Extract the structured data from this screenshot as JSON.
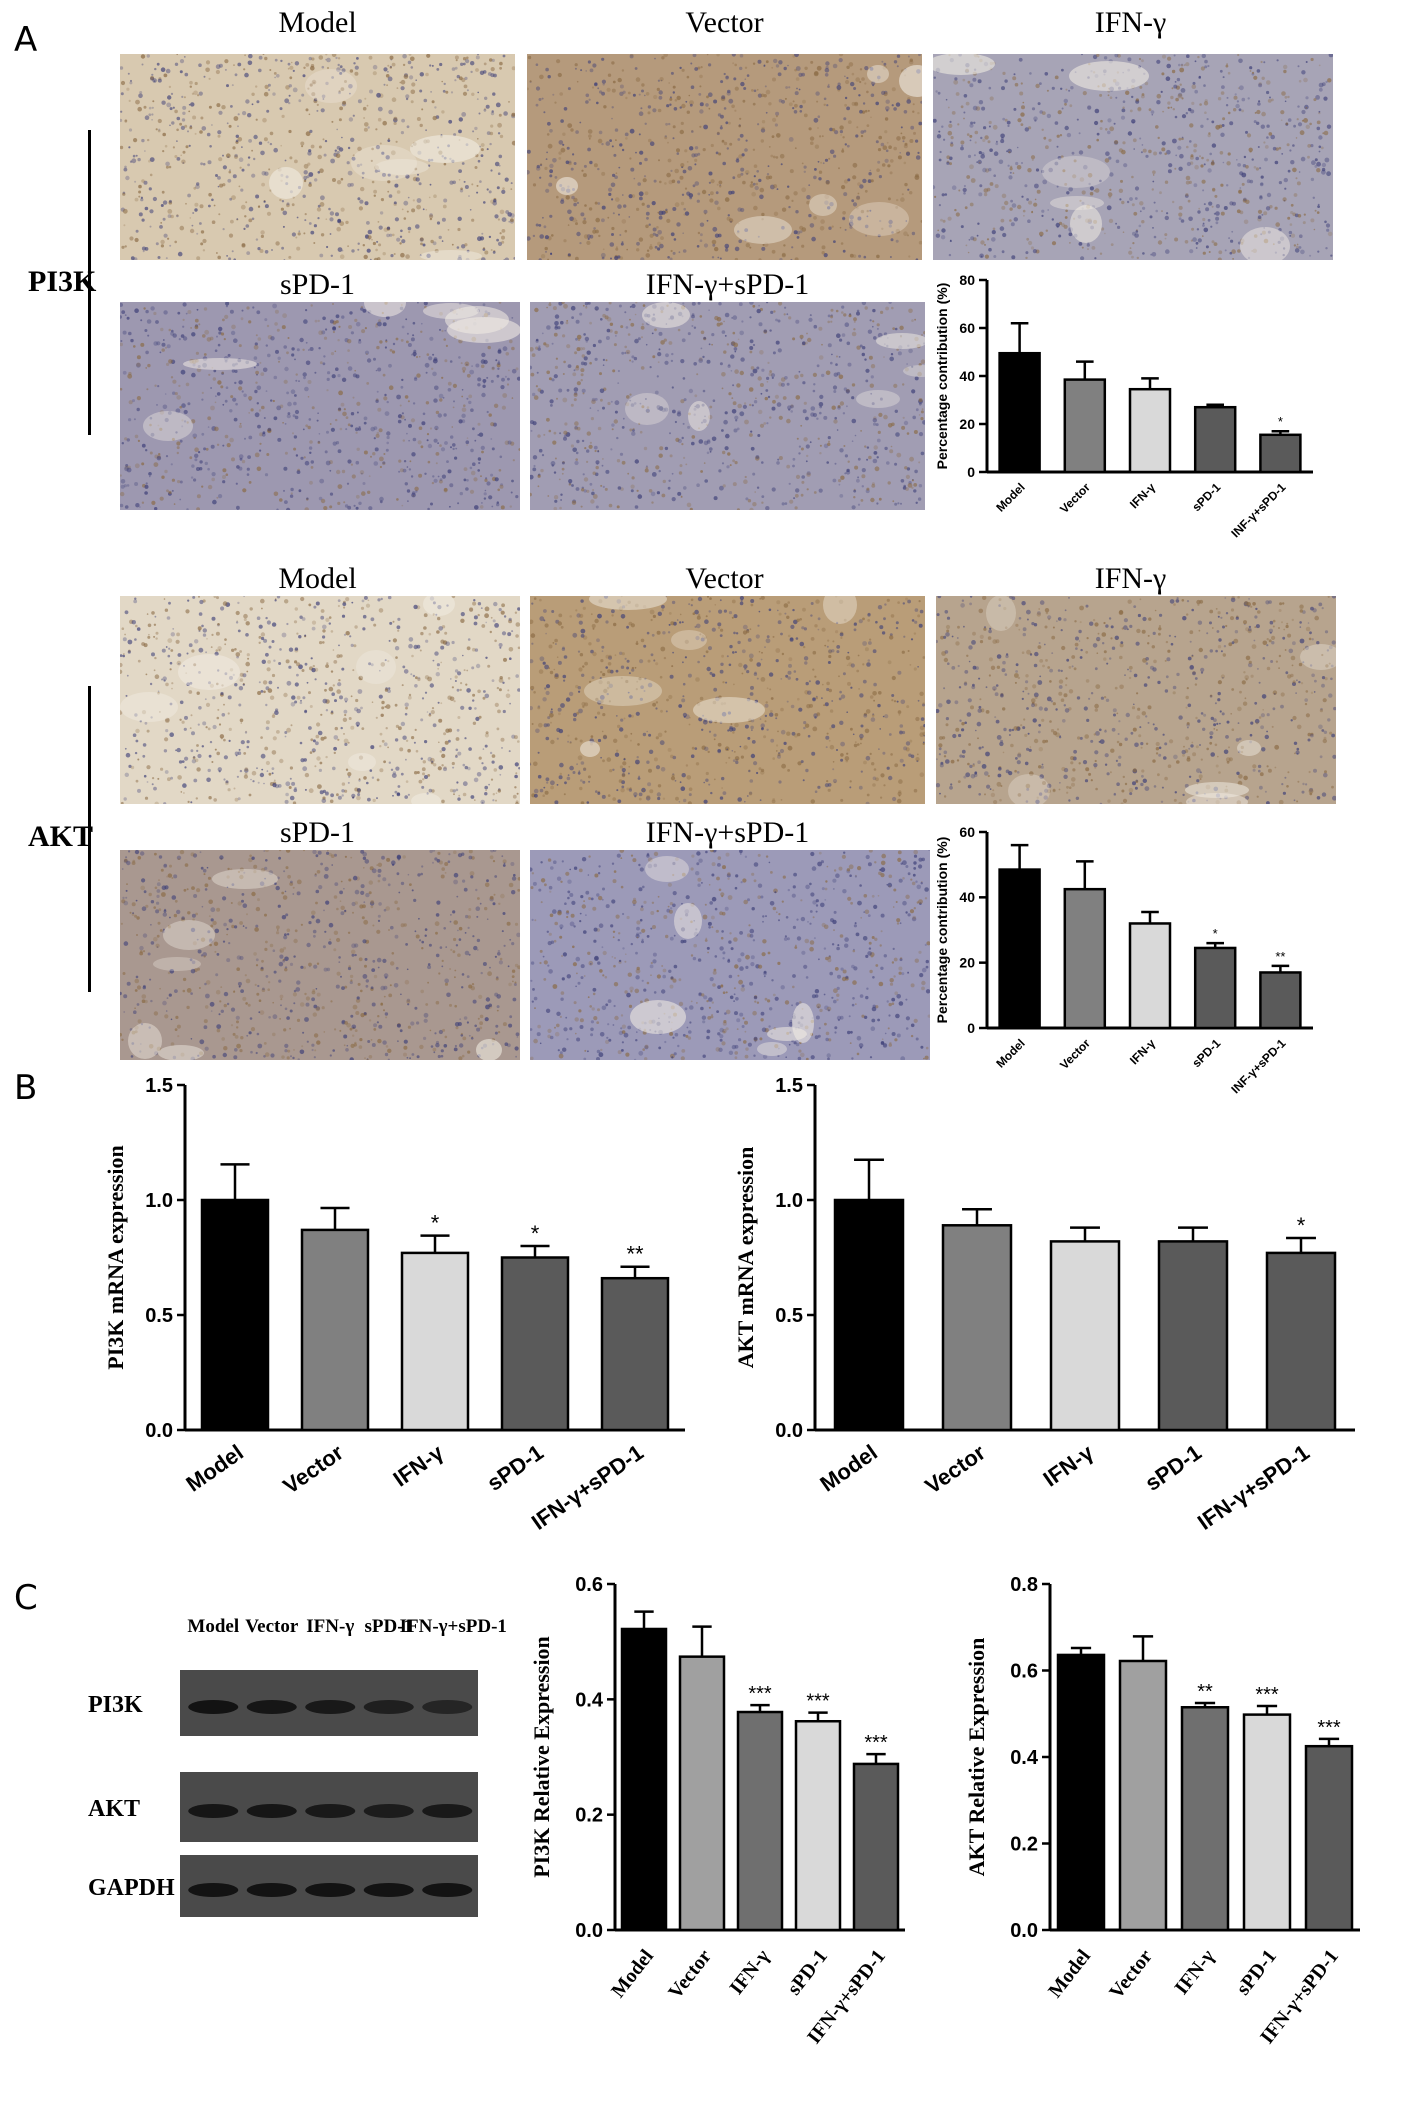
{
  "panels": {
    "a": "A",
    "b": "B",
    "c": "C"
  },
  "section_a": {
    "pi3k_label": "PI3K",
    "akt_label": "AKT",
    "row1_titles": [
      "Model",
      "Vector",
      "IFN-γ"
    ],
    "row2_titles": [
      "sPD-1",
      "IFN-γ+sPD-1"
    ]
  },
  "micrographs": [
    {
      "group": "PI3K",
      "title": "Model",
      "tone": "#d8c9b0"
    },
    {
      "group": "PI3K",
      "title": "Vector",
      "tone": "#b59a7c"
    },
    {
      "group": "PI3K",
      "title": "IFN-γ",
      "tone": "#a7a4b6"
    },
    {
      "group": "PI3K",
      "title": "sPD-1",
      "tone": "#9d98b0"
    },
    {
      "group": "PI3K",
      "title": "IFN-γ+sPD-1",
      "tone": "#a19db3"
    },
    {
      "group": "AKT",
      "title": "Model",
      "tone": "#e2d8c6"
    },
    {
      "group": "AKT",
      "title": "Vector",
      "tone": "#b99d78"
    },
    {
      "group": "AKT",
      "title": "IFN-γ",
      "tone": "#b7a48e"
    },
    {
      "group": "AKT",
      "title": "sPD-1",
      "tone": "#a99890"
    },
    {
      "group": "AKT",
      "title": "IFN-γ+sPD-1",
      "tone": "#9c9ab8"
    }
  ],
  "blot": {
    "lane_labels": [
      "Model",
      "Vector",
      "IFN-γ",
      "sPD-1",
      "IFN-γ+sPD-1"
    ],
    "row_labels": [
      "PI3K",
      "AKT",
      "GAPDH"
    ],
    "band_intensity": [
      [
        0.9,
        0.85,
        0.8,
        0.7,
        0.6
      ],
      [
        0.85,
        0.85,
        0.8,
        0.75,
        0.8
      ],
      [
        0.9,
        0.9,
        0.9,
        0.9,
        0.9
      ]
    ]
  },
  "chart_data": [
    {
      "id": "a-pi3k",
      "type": "bar",
      "categories": [
        "Model",
        "Vector",
        "IFN-γ",
        "sPD-1",
        "INF-γ+sPD-1"
      ],
      "values": [
        49.5,
        38.5,
        34.5,
        27,
        15.5
      ],
      "errors": [
        12.5,
        7.5,
        4.5,
        1,
        1.5
      ],
      "sig": [
        "",
        "",
        "",
        "",
        "*"
      ],
      "ylabel": "Percentage contribution (%)",
      "ylim": [
        0,
        80
      ],
      "yticks": [
        0,
        20,
        40,
        60,
        80
      ],
      "colors": [
        "#000000",
        "#808080",
        "#d9d9d9",
        "#5a5a5a",
        "#5a5a5a"
      ]
    },
    {
      "id": "a-akt",
      "type": "bar",
      "categories": [
        "Model",
        "Vector",
        "IFN-γ",
        "sPD-1",
        "INF-γ+sPD-1"
      ],
      "values": [
        48.5,
        42.5,
        32,
        24.5,
        17
      ],
      "errors": [
        7.5,
        8.5,
        3.5,
        1.5,
        2
      ],
      "sig": [
        "",
        "",
        "",
        "*",
        "**"
      ],
      "ylabel": "Percentage contribution (%)",
      "ylim": [
        0,
        60
      ],
      "yticks": [
        0,
        20,
        40,
        60
      ],
      "colors": [
        "#000000",
        "#808080",
        "#d9d9d9",
        "#5a5a5a",
        "#5a5a5a"
      ]
    },
    {
      "id": "b-pi3k",
      "type": "bar",
      "categories": [
        "Model",
        "Vector",
        "IFN-γ",
        "sPD-1",
        "IFN-γ+sPD-1"
      ],
      "values": [
        1.0,
        0.87,
        0.77,
        0.75,
        0.66
      ],
      "errors": [
        0.155,
        0.095,
        0.075,
        0.05,
        0.05
      ],
      "sig": [
        "",
        "",
        "*",
        "*",
        "**"
      ],
      "ylabel": "PI3K mRNA expression",
      "ylim": [
        0,
        1.5
      ],
      "yticks": [
        "0.0",
        "0.5",
        "1.0",
        "1.5"
      ],
      "colors": [
        "#000000",
        "#808080",
        "#d9d9d9",
        "#5a5a5a",
        "#5a5a5a"
      ]
    },
    {
      "id": "b-akt",
      "type": "bar",
      "categories": [
        "Model",
        "Vector",
        "IFN-γ",
        "sPD-1",
        "IFN-γ+sPD-1"
      ],
      "values": [
        1.0,
        0.89,
        0.82,
        0.82,
        0.77
      ],
      "errors": [
        0.175,
        0.07,
        0.06,
        0.06,
        0.065
      ],
      "sig": [
        "",
        "",
        "",
        "",
        "*"
      ],
      "ylabel": "AKT mRNA expression",
      "ylim": [
        0,
        1.5
      ],
      "yticks": [
        "0.0",
        "0.5",
        "1.0",
        "1.5"
      ],
      "colors": [
        "#000000",
        "#808080",
        "#d9d9d9",
        "#5a5a5a",
        "#5a5a5a"
      ]
    },
    {
      "id": "c-pi3k",
      "type": "bar",
      "categories": [
        "Model",
        "Vector",
        "IFN-γ",
        "sPD-1",
        "IFN-γ+sPD-1"
      ],
      "values": [
        0.522,
        0.474,
        0.378,
        0.362,
        0.288
      ],
      "errors": [
        0.03,
        0.052,
        0.012,
        0.015,
        0.017
      ],
      "sig": [
        "",
        "",
        "***",
        "***",
        "***"
      ],
      "ylabel": "PI3K Relative Expression",
      "ylim": [
        0,
        0.6
      ],
      "yticks": [
        "0.0",
        "0.2",
        "0.4",
        "0.6"
      ],
      "colors": [
        "#000000",
        "#a0a0a0",
        "#6f6f6f",
        "#d9d9d9",
        "#5a5a5a"
      ]
    },
    {
      "id": "c-akt",
      "type": "bar",
      "categories": [
        "Model",
        "Vector",
        "IFN-γ",
        "sPD-1",
        "IFN-γ+sPD-1"
      ],
      "values": [
        0.636,
        0.622,
        0.515,
        0.498,
        0.425
      ],
      "errors": [
        0.016,
        0.057,
        0.01,
        0.02,
        0.017
      ],
      "sig": [
        "",
        "",
        "**",
        "***",
        "***"
      ],
      "ylabel": "AKT Relative Expression",
      "ylim": [
        0,
        0.8
      ],
      "yticks": [
        "0.0",
        "0.2",
        "0.4",
        "0.6",
        "0.8"
      ],
      "colors": [
        "#000000",
        "#a0a0a0",
        "#6f6f6f",
        "#d9d9d9",
        "#5a5a5a"
      ]
    }
  ]
}
